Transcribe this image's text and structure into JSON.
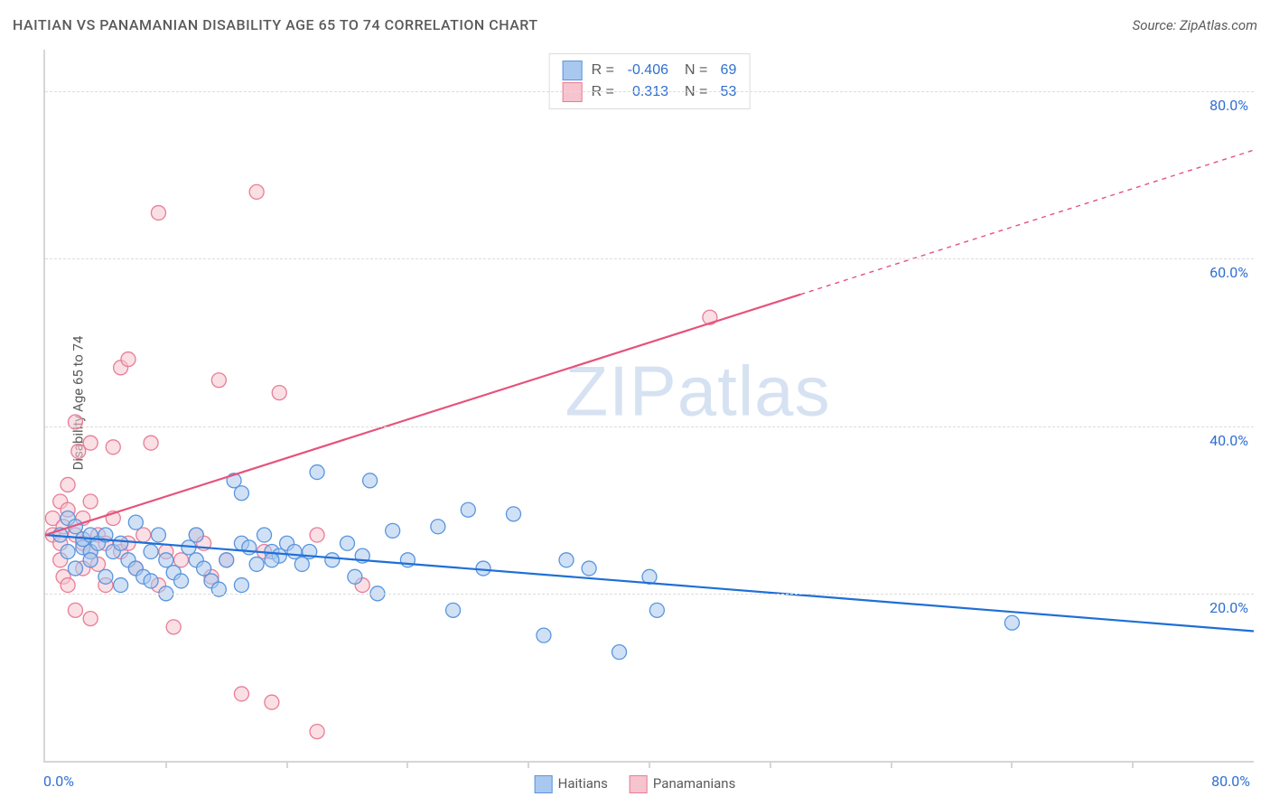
{
  "title": "HAITIAN VS PANAMANIAN DISABILITY AGE 65 TO 74 CORRELATION CHART",
  "source": "Source: ZipAtlas.com",
  "ylabel": "Disability Age 65 to 74",
  "watermark": "ZIPatlas",
  "chart": {
    "type": "scatter",
    "xlim": [
      0,
      80
    ],
    "ylim": [
      0,
      85
    ],
    "x_origin_label": "0.0%",
    "x_far_label": "80.0%",
    "yticks": [
      {
        "v": 20,
        "label": "20.0%"
      },
      {
        "v": 40,
        "label": "40.0%"
      },
      {
        "v": 60,
        "label": "60.0%"
      },
      {
        "v": 80,
        "label": "80.0%"
      }
    ],
    "xtick_marks": [
      8,
      16,
      24,
      32,
      40,
      48,
      56,
      64,
      72
    ],
    "grid_color": "#dcdcdc",
    "axis_color": "#d6d6d6",
    "background_color": "#ffffff",
    "marker_radius": 8,
    "marker_stroke_width": 1.3,
    "line_width": 2.2
  },
  "series": [
    {
      "name": "Haitians",
      "fill": "#a9c8ef",
      "stroke": "#5a95dd",
      "fill_opacity": 0.55,
      "line_color": "#1f6fd6",
      "trend": {
        "x0": 0,
        "y0": 27,
        "x1": 80,
        "y1": 15.5,
        "dash_from_x": 80
      },
      "R": "-0.406",
      "N": "69",
      "points": [
        [
          1,
          27
        ],
        [
          1.5,
          25
        ],
        [
          1.5,
          29
        ],
        [
          2,
          23
        ],
        [
          2,
          28
        ],
        [
          2.5,
          25.5
        ],
        [
          2.5,
          26.5
        ],
        [
          3,
          25
        ],
        [
          3,
          27
        ],
        [
          3,
          24
        ],
        [
          3.5,
          26
        ],
        [
          4,
          22
        ],
        [
          4,
          27
        ],
        [
          4.5,
          25
        ],
        [
          5,
          21
        ],
        [
          5,
          26
        ],
        [
          5.5,
          24
        ],
        [
          6,
          28.5
        ],
        [
          6,
          23
        ],
        [
          6.5,
          22
        ],
        [
          7,
          25
        ],
        [
          7,
          21.5
        ],
        [
          7.5,
          27
        ],
        [
          8,
          24
        ],
        [
          8,
          20
        ],
        [
          8.5,
          22.5
        ],
        [
          9,
          21.5
        ],
        [
          9.5,
          25.5
        ],
        [
          10,
          24
        ],
        [
          10,
          27
        ],
        [
          10.5,
          23
        ],
        [
          11,
          21.5
        ],
        [
          11.5,
          20.5
        ],
        [
          12,
          24
        ],
        [
          12.5,
          33.5
        ],
        [
          13,
          26
        ],
        [
          13,
          21
        ],
        [
          13.5,
          25.5
        ],
        [
          14,
          23.5
        ],
        [
          14.5,
          27
        ],
        [
          15,
          25
        ],
        [
          15.5,
          24.5
        ],
        [
          16,
          26
        ],
        [
          16.5,
          25
        ],
        [
          17,
          23.5
        ],
        [
          17.5,
          25
        ],
        [
          18,
          34.5
        ],
        [
          19,
          24
        ],
        [
          20,
          26
        ],
        [
          20.5,
          22
        ],
        [
          21,
          24.5
        ],
        [
          21.5,
          33.5
        ],
        [
          22,
          20
        ],
        [
          23,
          27.5
        ],
        [
          24,
          24
        ],
        [
          26,
          28
        ],
        [
          27,
          18
        ],
        [
          28,
          30
        ],
        [
          29,
          23
        ],
        [
          31,
          29.5
        ],
        [
          33,
          15
        ],
        [
          34.5,
          24
        ],
        [
          36,
          23
        ],
        [
          38,
          13
        ],
        [
          40,
          22
        ],
        [
          40.5,
          18
        ],
        [
          64,
          16.5
        ],
        [
          13,
          32
        ],
        [
          15,
          24
        ]
      ]
    },
    {
      "name": "Panamanians",
      "fill": "#f6c4cf",
      "stroke": "#e87d95",
      "fill_opacity": 0.55,
      "line_color": "#e5537a",
      "trend": {
        "x0": 0,
        "y0": 27,
        "x1": 80,
        "y1": 73,
        "dash_from_x": 50
      },
      "R": "0.313",
      "N": "53",
      "points": [
        [
          0.5,
          27
        ],
        [
          0.5,
          29
        ],
        [
          1,
          26
        ],
        [
          1,
          31
        ],
        [
          1,
          24
        ],
        [
          1.2,
          28
        ],
        [
          1.2,
          22
        ],
        [
          1.5,
          30
        ],
        [
          1.5,
          33
        ],
        [
          1.5,
          21
        ],
        [
          2,
          27
        ],
        [
          2,
          40.5
        ],
        [
          2,
          18
        ],
        [
          2.2,
          37
        ],
        [
          2.5,
          26
        ],
        [
          2.5,
          23
        ],
        [
          2.5,
          29
        ],
        [
          3,
          25
        ],
        [
          3,
          31
        ],
        [
          3,
          38
        ],
        [
          3,
          17
        ],
        [
          3.5,
          27
        ],
        [
          3.5,
          23.5
        ],
        [
          4,
          26
        ],
        [
          4,
          21
        ],
        [
          4.5,
          29
        ],
        [
          4.5,
          37.5
        ],
        [
          5,
          25
        ],
        [
          5,
          47
        ],
        [
          5.5,
          48
        ],
        [
          5.5,
          26
        ],
        [
          6,
          23
        ],
        [
          6.5,
          27
        ],
        [
          7,
          38
        ],
        [
          7.5,
          21
        ],
        [
          7.5,
          65.5
        ],
        [
          8,
          25
        ],
        [
          8.5,
          16
        ],
        [
          9,
          24
        ],
        [
          10,
          27
        ],
        [
          10.5,
          26
        ],
        [
          11,
          22
        ],
        [
          11.5,
          45.5
        ],
        [
          12,
          24
        ],
        [
          13,
          8
        ],
        [
          14,
          68
        ],
        [
          14.5,
          25
        ],
        [
          15,
          7
        ],
        [
          15.5,
          44
        ],
        [
          18,
          27
        ],
        [
          18,
          3.5
        ],
        [
          21,
          21
        ],
        [
          44,
          53
        ]
      ]
    }
  ],
  "legend_bottom": [
    {
      "label": "Haitians",
      "fill": "#a9c8ef",
      "stroke": "#5a95dd"
    },
    {
      "label": "Panamanians",
      "fill": "#f6c4cf",
      "stroke": "#e87d95"
    }
  ],
  "legend_top_labels": {
    "R": "R =",
    "N": "N ="
  }
}
